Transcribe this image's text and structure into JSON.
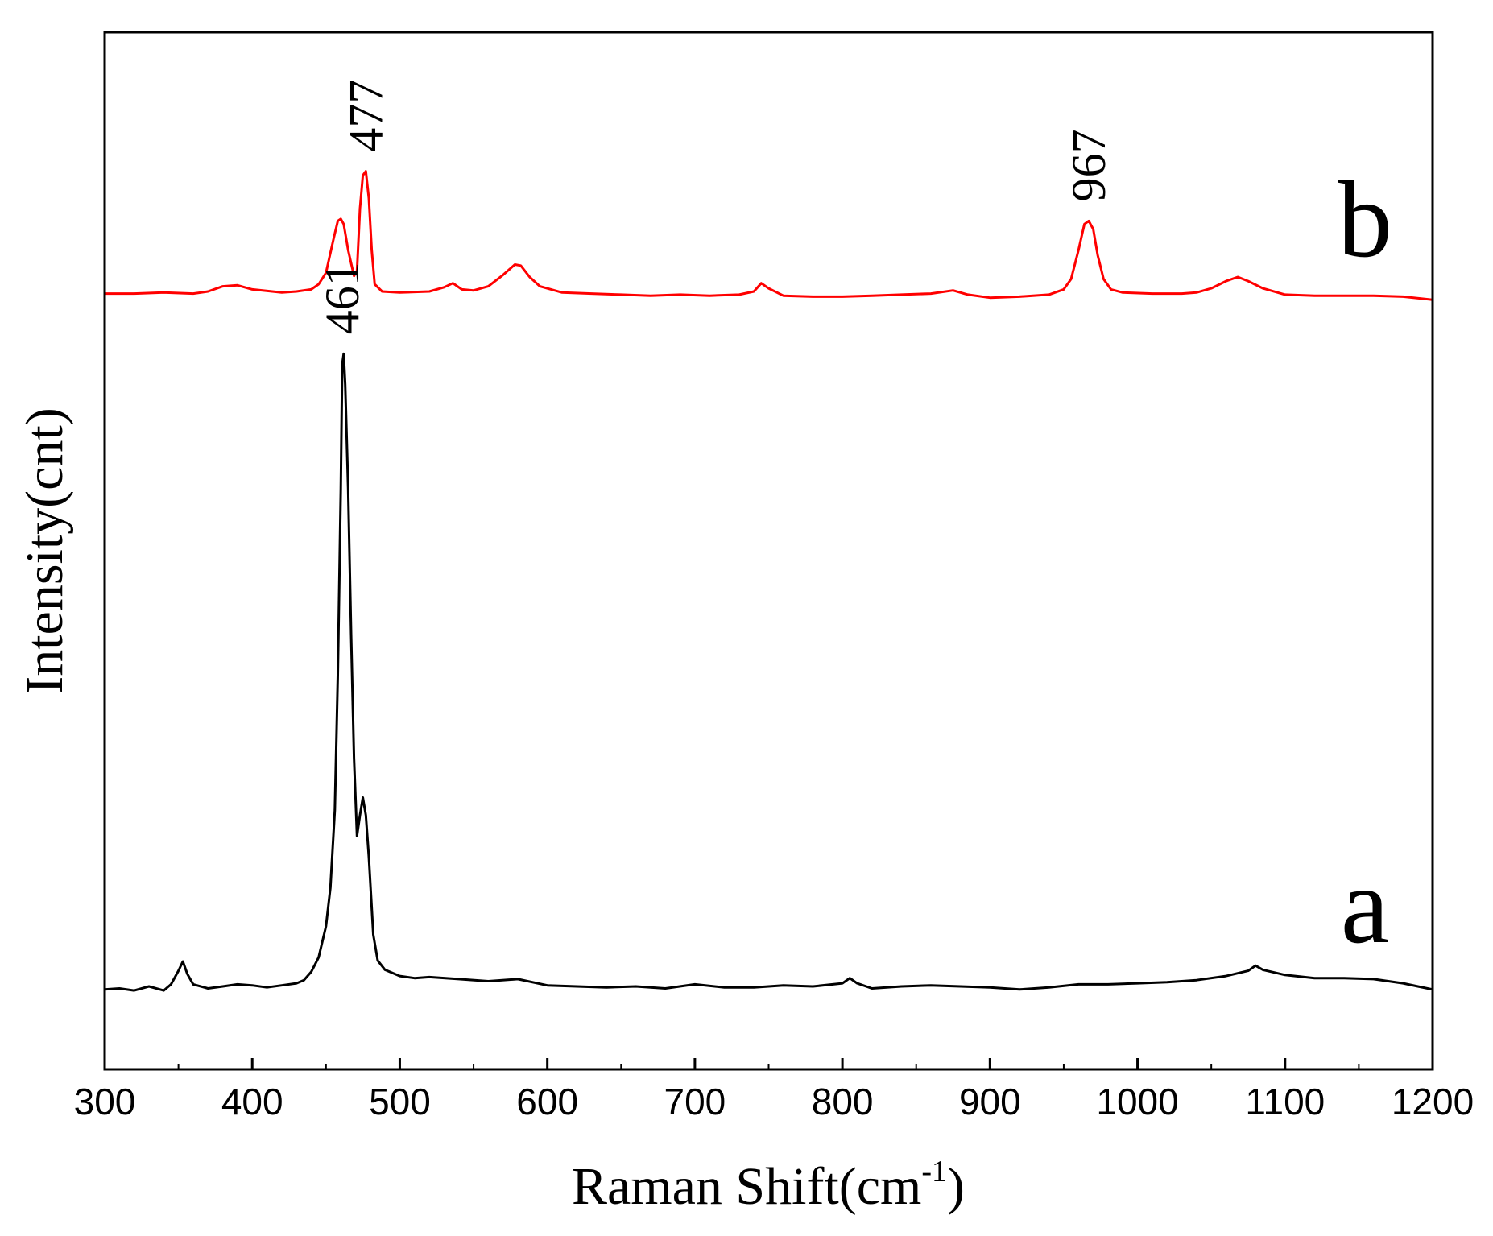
{
  "chart_data": {
    "type": "line",
    "xlabel": "Raman Shift(cm",
    "xlabel_sup": "-1",
    "xlabel_tail": ")",
    "ylabel": "Intensity(cnt)",
    "xlim": [
      300,
      1200
    ],
    "ylim": [
      0,
      1
    ],
    "x_ticks": [
      "300",
      "400",
      "500",
      "600",
      "700",
      "800",
      "900",
      "1000",
      "1100",
      "1200"
    ],
    "y_ticks_shown": false,
    "grid": false,
    "legend": "none",
    "series": [
      {
        "label": "a",
        "color": "#000000",
        "points": [
          [
            300,
            0.077
          ],
          [
            310,
            0.078
          ],
          [
            320,
            0.076
          ],
          [
            330,
            0.08
          ],
          [
            340,
            0.076
          ],
          [
            345,
            0.082
          ],
          [
            350,
            0.095
          ],
          [
            353,
            0.104
          ],
          [
            356,
            0.092
          ],
          [
            360,
            0.082
          ],
          [
            370,
            0.078
          ],
          [
            380,
            0.08
          ],
          [
            390,
            0.082
          ],
          [
            400,
            0.081
          ],
          [
            410,
            0.079
          ],
          [
            420,
            0.081
          ],
          [
            430,
            0.083
          ],
          [
            435,
            0.086
          ],
          [
            440,
            0.094
          ],
          [
            445,
            0.108
          ],
          [
            450,
            0.138
          ],
          [
            453,
            0.175
          ],
          [
            456,
            0.25
          ],
          [
            458,
            0.38
          ],
          [
            460,
            0.56
          ],
          [
            461,
            0.68
          ],
          [
            462,
            0.69
          ],
          [
            463,
            0.66
          ],
          [
            465,
            0.56
          ],
          [
            467,
            0.42
          ],
          [
            469,
            0.3
          ],
          [
            471,
            0.225
          ],
          [
            473,
            0.245
          ],
          [
            475,
            0.262
          ],
          [
            477,
            0.245
          ],
          [
            479,
            0.205
          ],
          [
            482,
            0.13
          ],
          [
            485,
            0.105
          ],
          [
            490,
            0.096
          ],
          [
            500,
            0.09
          ],
          [
            510,
            0.088
          ],
          [
            520,
            0.089
          ],
          [
            540,
            0.087
          ],
          [
            560,
            0.085
          ],
          [
            580,
            0.087
          ],
          [
            600,
            0.081
          ],
          [
            620,
            0.08
          ],
          [
            640,
            0.079
          ],
          [
            660,
            0.08
          ],
          [
            680,
            0.078
          ],
          [
            700,
            0.082
          ],
          [
            720,
            0.079
          ],
          [
            740,
            0.079
          ],
          [
            760,
            0.081
          ],
          [
            780,
            0.08
          ],
          [
            800,
            0.083
          ],
          [
            805,
            0.088
          ],
          [
            810,
            0.083
          ],
          [
            820,
            0.078
          ],
          [
            840,
            0.08
          ],
          [
            860,
            0.081
          ],
          [
            880,
            0.08
          ],
          [
            900,
            0.079
          ],
          [
            920,
            0.077
          ],
          [
            940,
            0.079
          ],
          [
            960,
            0.082
          ],
          [
            980,
            0.082
          ],
          [
            1000,
            0.083
          ],
          [
            1020,
            0.084
          ],
          [
            1040,
            0.086
          ],
          [
            1060,
            0.09
          ],
          [
            1075,
            0.095
          ],
          [
            1080,
            0.1
          ],
          [
            1085,
            0.096
          ],
          [
            1100,
            0.091
          ],
          [
            1120,
            0.088
          ],
          [
            1140,
            0.088
          ],
          [
            1160,
            0.087
          ],
          [
            1180,
            0.083
          ],
          [
            1190,
            0.08
          ],
          [
            1200,
            0.077
          ]
        ]
      },
      {
        "label": "b",
        "color": "#ff0000",
        "points": [
          [
            300,
            0.748
          ],
          [
            320,
            0.748
          ],
          [
            340,
            0.749
          ],
          [
            360,
            0.748
          ],
          [
            370,
            0.75
          ],
          [
            380,
            0.755
          ],
          [
            390,
            0.756
          ],
          [
            400,
            0.752
          ],
          [
            420,
            0.749
          ],
          [
            430,
            0.75
          ],
          [
            440,
            0.752
          ],
          [
            445,
            0.757
          ],
          [
            450,
            0.768
          ],
          [
            455,
            0.8
          ],
          [
            458,
            0.818
          ],
          [
            460,
            0.82
          ],
          [
            462,
            0.815
          ],
          [
            465,
            0.79
          ],
          [
            469,
            0.765
          ],
          [
            471,
            0.77
          ],
          [
            473,
            0.83
          ],
          [
            475,
            0.862
          ],
          [
            477,
            0.866
          ],
          [
            479,
            0.84
          ],
          [
            481,
            0.79
          ],
          [
            483,
            0.757
          ],
          [
            488,
            0.75
          ],
          [
            500,
            0.749
          ],
          [
            520,
            0.75
          ],
          [
            530,
            0.754
          ],
          [
            536,
            0.758
          ],
          [
            542,
            0.752
          ],
          [
            550,
            0.751
          ],
          [
            560,
            0.755
          ],
          [
            570,
            0.766
          ],
          [
            578,
            0.776
          ],
          [
            582,
            0.775
          ],
          [
            588,
            0.764
          ],
          [
            595,
            0.755
          ],
          [
            610,
            0.749
          ],
          [
            630,
            0.748
          ],
          [
            650,
            0.747
          ],
          [
            670,
            0.746
          ],
          [
            690,
            0.747
          ],
          [
            710,
            0.746
          ],
          [
            730,
            0.747
          ],
          [
            740,
            0.75
          ],
          [
            745,
            0.758
          ],
          [
            750,
            0.753
          ],
          [
            760,
            0.746
          ],
          [
            780,
            0.745
          ],
          [
            800,
            0.745
          ],
          [
            820,
            0.746
          ],
          [
            840,
            0.747
          ],
          [
            860,
            0.748
          ],
          [
            875,
            0.751
          ],
          [
            885,
            0.747
          ],
          [
            900,
            0.744
          ],
          [
            920,
            0.745
          ],
          [
            940,
            0.747
          ],
          [
            950,
            0.752
          ],
          [
            955,
            0.762
          ],
          [
            960,
            0.79
          ],
          [
            964,
            0.815
          ],
          [
            967,
            0.818
          ],
          [
            970,
            0.81
          ],
          [
            973,
            0.785
          ],
          [
            977,
            0.762
          ],
          [
            982,
            0.752
          ],
          [
            990,
            0.749
          ],
          [
            1010,
            0.748
          ],
          [
            1030,
            0.748
          ],
          [
            1040,
            0.749
          ],
          [
            1050,
            0.753
          ],
          [
            1060,
            0.76
          ],
          [
            1068,
            0.764
          ],
          [
            1075,
            0.76
          ],
          [
            1085,
            0.753
          ],
          [
            1100,
            0.747
          ],
          [
            1120,
            0.746
          ],
          [
            1140,
            0.746
          ],
          [
            1160,
            0.746
          ],
          [
            1180,
            0.745
          ],
          [
            1200,
            0.742
          ]
        ]
      }
    ],
    "peak_annotations": [
      {
        "text": "477",
        "x": 477,
        "y": 0.866
      },
      {
        "text": "967",
        "x": 967,
        "y": 0.818
      },
      {
        "text": "461",
        "x": 461,
        "y": 0.69
      }
    ]
  }
}
